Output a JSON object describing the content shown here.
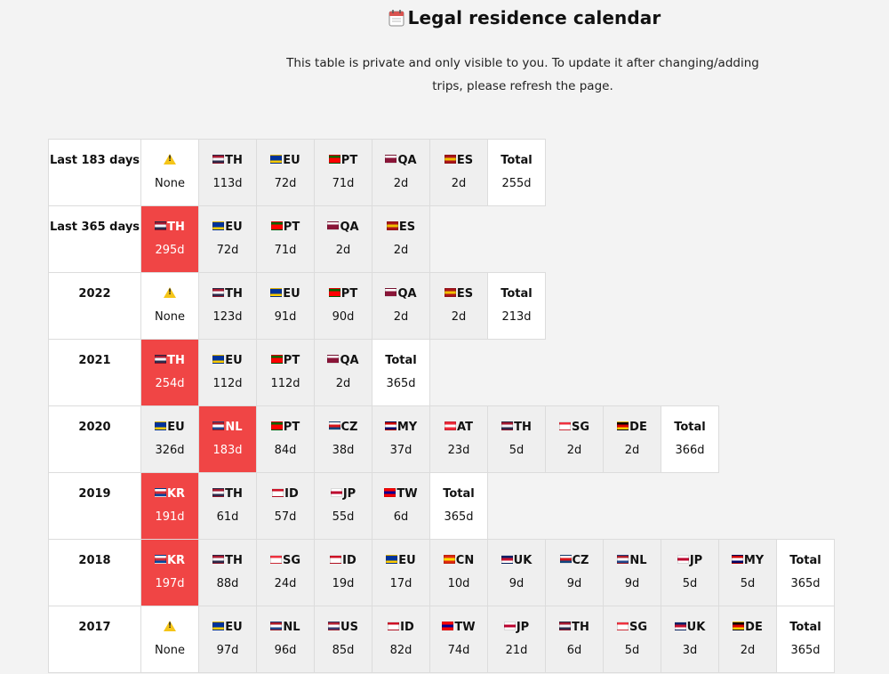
{
  "header": {
    "title": "Legal residence calendar",
    "subtitle": "This table is private and only visible to you. To update it after changing/adding trips, please refresh the page."
  },
  "flag_colors": {
    "TH": [
      "#a51931",
      "#f4f5f8",
      "#2d2a4a"
    ],
    "EU": [
      "#003399",
      "#003399",
      "#ffcc00"
    ],
    "PT": [
      "#006600",
      "#ff0000",
      "#ff0000"
    ],
    "QA": [
      "#ffffff",
      "#8a1538",
      "#8a1538"
    ],
    "ES": [
      "#aa151b",
      "#f1bf00",
      "#aa151b"
    ],
    "NL": [
      "#ae1c28",
      "#ffffff",
      "#21468b"
    ],
    "CZ": [
      "#ffffff",
      "#d7141a",
      "#11457e"
    ],
    "MY": [
      "#cc0001",
      "#ffffff",
      "#010066"
    ],
    "AT": [
      "#ed2939",
      "#ffffff",
      "#ed2939"
    ],
    "SG": [
      "#ef3340",
      "#ffffff",
      "#ffffff"
    ],
    "DE": [
      "#000000",
      "#dd0000",
      "#ffce00"
    ],
    "KR": [
      "#ffffff",
      "#cd2e3a",
      "#0047a0"
    ],
    "ID": [
      "#ce1126",
      "#ffffff",
      "#ffffff"
    ],
    "JP": [
      "#ffffff",
      "#bc002d",
      "#ffffff"
    ],
    "TW": [
      "#fe0000",
      "#000095",
      "#fe0000"
    ],
    "CN": [
      "#de2910",
      "#ffde00",
      "#de2910"
    ],
    "UK": [
      "#012169",
      "#c8102e",
      "#ffffff"
    ],
    "US": [
      "#b22234",
      "#ffffff",
      "#3c3b6e"
    ]
  },
  "rows": [
    {
      "label": "Last 183 days",
      "cells": [
        {
          "kind": "warn",
          "code": "",
          "value": "None"
        },
        {
          "kind": "country",
          "code": "TH",
          "value": "113d"
        },
        {
          "kind": "country",
          "code": "EU",
          "value": "72d"
        },
        {
          "kind": "country",
          "code": "PT",
          "value": "71d"
        },
        {
          "kind": "country",
          "code": "QA",
          "value": "2d"
        },
        {
          "kind": "country",
          "code": "ES",
          "value": "2d"
        },
        {
          "kind": "total",
          "code": "Total",
          "value": "255d"
        }
      ]
    },
    {
      "label": "Last 365 days",
      "cells": [
        {
          "kind": "hi",
          "code": "TH",
          "value": "295d"
        },
        {
          "kind": "country",
          "code": "EU",
          "value": "72d"
        },
        {
          "kind": "country",
          "code": "PT",
          "value": "71d"
        },
        {
          "kind": "country",
          "code": "QA",
          "value": "2d"
        },
        {
          "kind": "country",
          "code": "ES",
          "value": "2d"
        }
      ]
    },
    {
      "label": "2022",
      "cells": [
        {
          "kind": "warn",
          "code": "",
          "value": "None"
        },
        {
          "kind": "country",
          "code": "TH",
          "value": "123d"
        },
        {
          "kind": "country",
          "code": "EU",
          "value": "91d"
        },
        {
          "kind": "country",
          "code": "PT",
          "value": "90d"
        },
        {
          "kind": "country",
          "code": "QA",
          "value": "2d"
        },
        {
          "kind": "country",
          "code": "ES",
          "value": "2d"
        },
        {
          "kind": "total",
          "code": "Total",
          "value": "213d"
        }
      ]
    },
    {
      "label": "2021",
      "cells": [
        {
          "kind": "hi",
          "code": "TH",
          "value": "254d"
        },
        {
          "kind": "country",
          "code": "EU",
          "value": "112d"
        },
        {
          "kind": "country",
          "code": "PT",
          "value": "112d"
        },
        {
          "kind": "country",
          "code": "QA",
          "value": "2d"
        },
        {
          "kind": "total",
          "code": "Total",
          "value": "365d"
        }
      ]
    },
    {
      "label": "2020",
      "cells": [
        {
          "kind": "country",
          "code": "EU",
          "value": "326d"
        },
        {
          "kind": "hi",
          "code": "NL",
          "value": "183d"
        },
        {
          "kind": "country",
          "code": "PT",
          "value": "84d"
        },
        {
          "kind": "country",
          "code": "CZ",
          "value": "38d"
        },
        {
          "kind": "country",
          "code": "MY",
          "value": "37d"
        },
        {
          "kind": "country",
          "code": "AT",
          "value": "23d"
        },
        {
          "kind": "country",
          "code": "TH",
          "value": "5d"
        },
        {
          "kind": "country",
          "code": "SG",
          "value": "2d"
        },
        {
          "kind": "country",
          "code": "DE",
          "value": "2d"
        },
        {
          "kind": "total",
          "code": "Total",
          "value": "366d"
        }
      ]
    },
    {
      "label": "2019",
      "cells": [
        {
          "kind": "hi",
          "code": "KR",
          "value": "191d"
        },
        {
          "kind": "country",
          "code": "TH",
          "value": "61d"
        },
        {
          "kind": "country",
          "code": "ID",
          "value": "57d"
        },
        {
          "kind": "country",
          "code": "JP",
          "value": "55d"
        },
        {
          "kind": "country",
          "code": "TW",
          "value": "6d"
        },
        {
          "kind": "total",
          "code": "Total",
          "value": "365d"
        }
      ]
    },
    {
      "label": "2018",
      "cells": [
        {
          "kind": "hi",
          "code": "KR",
          "value": "197d"
        },
        {
          "kind": "country",
          "code": "TH",
          "value": "88d"
        },
        {
          "kind": "country",
          "code": "SG",
          "value": "24d"
        },
        {
          "kind": "country",
          "code": "ID",
          "value": "19d"
        },
        {
          "kind": "country",
          "code": "EU",
          "value": "17d"
        },
        {
          "kind": "country",
          "code": "CN",
          "value": "10d"
        },
        {
          "kind": "country",
          "code": "UK",
          "value": "9d"
        },
        {
          "kind": "country",
          "code": "CZ",
          "value": "9d"
        },
        {
          "kind": "country",
          "code": "NL",
          "value": "9d"
        },
        {
          "kind": "country",
          "code": "JP",
          "value": "5d"
        },
        {
          "kind": "country",
          "code": "MY",
          "value": "5d"
        },
        {
          "kind": "total",
          "code": "Total",
          "value": "365d"
        }
      ]
    },
    {
      "label": "2017",
      "cells": [
        {
          "kind": "warn",
          "code": "",
          "value": "None"
        },
        {
          "kind": "country",
          "code": "EU",
          "value": "97d"
        },
        {
          "kind": "country",
          "code": "NL",
          "value": "96d"
        },
        {
          "kind": "country",
          "code": "US",
          "value": "85d"
        },
        {
          "kind": "country",
          "code": "ID",
          "value": "82d"
        },
        {
          "kind": "country",
          "code": "TW",
          "value": "74d"
        },
        {
          "kind": "country",
          "code": "JP",
          "value": "21d"
        },
        {
          "kind": "country",
          "code": "TH",
          "value": "6d"
        },
        {
          "kind": "country",
          "code": "SG",
          "value": "5d"
        },
        {
          "kind": "country",
          "code": "UK",
          "value": "3d"
        },
        {
          "kind": "country",
          "code": "DE",
          "value": "2d"
        },
        {
          "kind": "total",
          "code": "Total",
          "value": "365d"
        }
      ]
    }
  ]
}
